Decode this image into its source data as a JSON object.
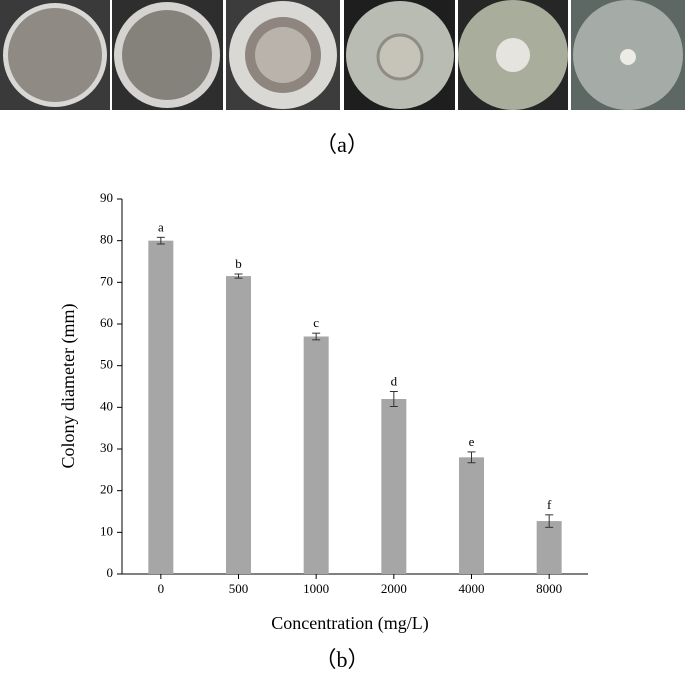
{
  "chart_data": {
    "type": "bar",
    "panel_a_label": "（a）",
    "panel_b_label": "（b）",
    "x_label": "Concentration (mg/L)",
    "y_label": "Colony diameter (mm)",
    "categories": [
      "0",
      "500",
      "1000",
      "2000",
      "4000",
      "8000"
    ],
    "values": [
      80,
      71.5,
      57,
      42,
      28,
      12.7
    ],
    "errors": [
      0.8,
      0.5,
      0.8,
      1.8,
      1.3,
      1.5
    ],
    "letters": [
      "a",
      "b",
      "c",
      "d",
      "e",
      "f"
    ],
    "color": "#a6a6a6",
    "ylim": [
      0,
      90
    ],
    "yticks": [
      0,
      10,
      20,
      30,
      40,
      50,
      60,
      70,
      80,
      90
    ]
  }
}
